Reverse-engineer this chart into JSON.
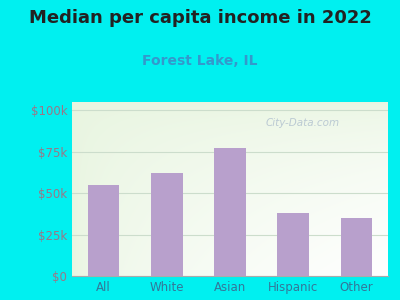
{
  "title": "Median per capita income in 2022",
  "subtitle": "Forest Lake, IL",
  "categories": [
    "All",
    "White",
    "Asian",
    "Hispanic",
    "Other"
  ],
  "values": [
    55000,
    62000,
    77000,
    38000,
    35000
  ],
  "bar_color": "#b8a0cc",
  "title_fontsize": 13,
  "subtitle_fontsize": 10,
  "subtitle_color": "#3399cc",
  "title_color": "#222222",
  "bg_outer_color": "#00f0f0",
  "tick_color": "#997788",
  "yticks": [
    0,
    25000,
    50000,
    75000,
    100000
  ],
  "ytick_labels": [
    "$0",
    "$25k",
    "$50k",
    "$75k",
    "$100k"
  ],
  "ylim": [
    0,
    105000
  ],
  "watermark": "City-Data.com",
  "grid_color": "#ccddcc",
  "xlabel_color": "#337799"
}
